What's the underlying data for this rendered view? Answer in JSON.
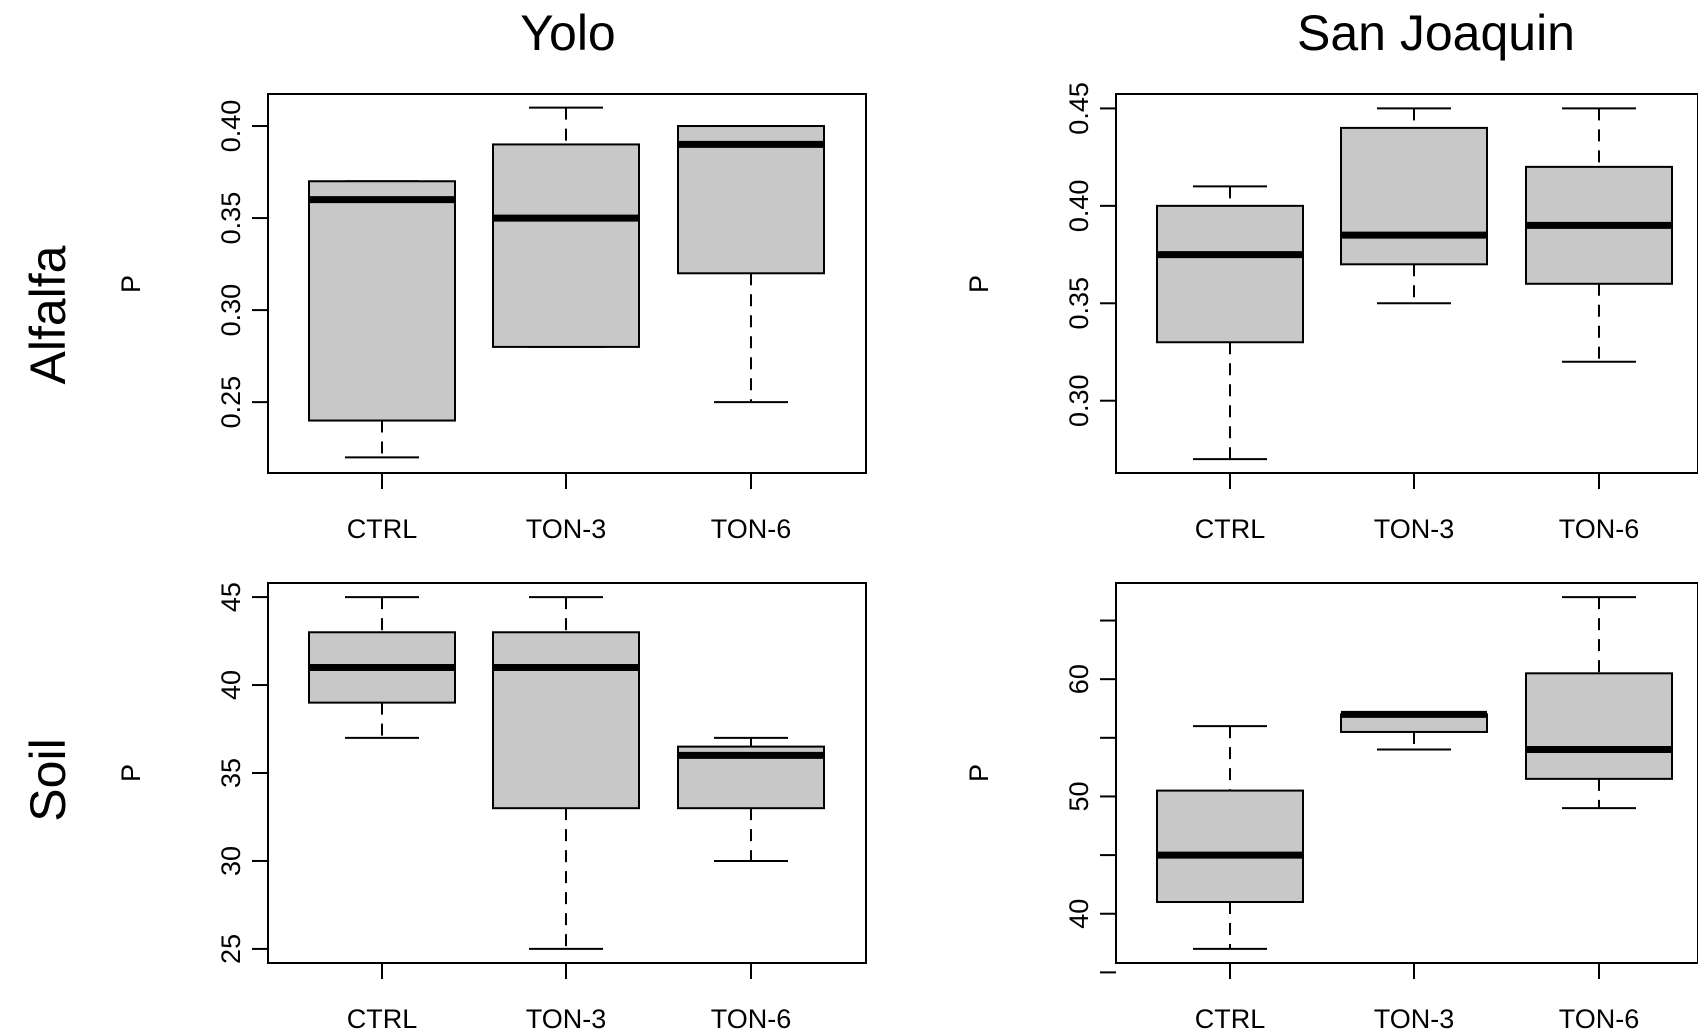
{
  "column_titles": [
    "Yolo",
    "San Joaquin"
  ],
  "row_titles": [
    "Alfalfa",
    "Soil"
  ],
  "colors": {
    "box_fill": "#c8c8c8",
    "stroke": "#000000",
    "background": "#ffffff"
  },
  "chart_data": [
    {
      "type": "boxplot",
      "column": "Yolo",
      "row": "Alfalfa",
      "ylabel": "P",
      "categories": [
        "CTRL",
        "TON-3",
        "TON-6"
      ],
      "yticks": [
        "0.25",
        "0.30",
        "0.35",
        "0.40"
      ],
      "ylim": [
        0.2115,
        0.4174
      ],
      "boxes": [
        {
          "min": 0.22,
          "q1": 0.24,
          "median": 0.36,
          "q3": 0.37,
          "max": 0.37
        },
        {
          "min": 0.28,
          "q1": 0.28,
          "median": 0.35,
          "q3": 0.39,
          "max": 0.41
        },
        {
          "min": 0.25,
          "q1": 0.32,
          "median": 0.39,
          "q3": 0.4,
          "max": 0.4
        }
      ]
    },
    {
      "type": "boxplot",
      "column": "San Joaquin",
      "row": "Alfalfa",
      "ylabel": "P",
      "categories": [
        "CTRL",
        "TON-3",
        "TON-6"
      ],
      "yticks": [
        "0.30",
        "0.35",
        "0.40",
        "0.45"
      ],
      "ylim": [
        0.2629,
        0.4574
      ],
      "boxes": [
        {
          "min": 0.27,
          "q1": 0.33,
          "median": 0.375,
          "q3": 0.4,
          "max": 0.41
        },
        {
          "min": 0.35,
          "q1": 0.37,
          "median": 0.385,
          "q3": 0.44,
          "max": 0.45
        },
        {
          "min": 0.32,
          "q1": 0.36,
          "median": 0.39,
          "q3": 0.42,
          "max": 0.45
        }
      ]
    },
    {
      "type": "boxplot",
      "column": "Yolo",
      "row": "Soil",
      "ylabel": "P",
      "categories": [
        "CTRL",
        "TON-3",
        "TON-6"
      ],
      "yticks": [
        "25",
        "30",
        "35",
        "40",
        "45"
      ],
      "ylim": [
        24.2,
        45.8
      ],
      "boxes": [
        {
          "min": 37,
          "q1": 39,
          "median": 41,
          "q3": 43,
          "max": 45
        },
        {
          "min": 25,
          "q1": 33,
          "median": 41,
          "q3": 43,
          "max": 45
        },
        {
          "min": 30,
          "q1": 33,
          "median": 36,
          "q3": 36.5,
          "max": 37
        }
      ]
    },
    {
      "type": "boxplot",
      "column": "San Joaquin",
      "row": "Soil",
      "ylabel": "P",
      "categories": [
        "CTRL",
        "TON-3",
        "TON-6"
      ],
      "yticks": [
        "40",
        "50",
        "60"
      ],
      "yticks_minor": [
        35,
        45,
        55,
        65
      ],
      "ylim": [
        35.8,
        68.2
      ],
      "boxes": [
        {
          "min": 37,
          "q1": 41,
          "median": 45,
          "q3": 50.5,
          "max": 56
        },
        {
          "min": 54,
          "q1": 55.5,
          "median": 57,
          "q3": 57,
          "max": 57
        },
        {
          "min": 49,
          "q1": 51.5,
          "median": 54,
          "q3": 60.5,
          "max": 67
        }
      ]
    }
  ]
}
